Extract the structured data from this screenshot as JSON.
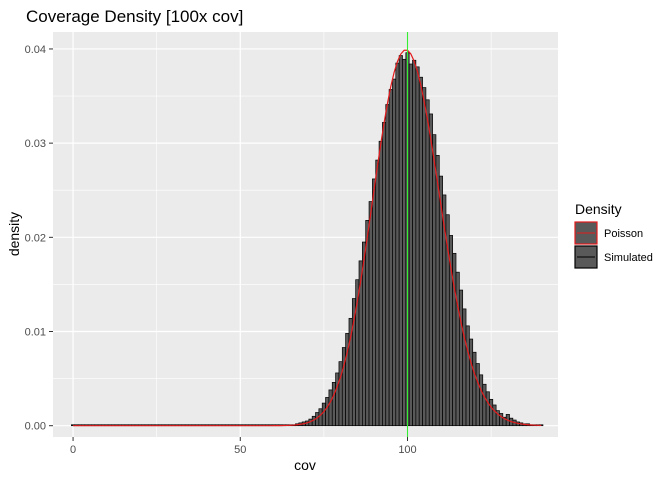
{
  "chart_data": {
    "type": "histogram",
    "title": "Coverage Density [100x cov]",
    "xlabel": "cov",
    "ylabel": "density",
    "xlim": [
      -6,
      145
    ],
    "ylim": [
      -0.0012,
      0.0418
    ],
    "x_ticks": [
      0,
      50,
      100
    ],
    "y_ticks": [
      0.0,
      0.01,
      0.02,
      0.03,
      0.04
    ],
    "x_tick_labels": [
      "0",
      "50",
      "100"
    ],
    "y_tick_labels": [
      "0.00",
      "0.01",
      "0.02",
      "0.03",
      "0.04"
    ],
    "grid": true,
    "legend": {
      "title": "Density",
      "position": "right",
      "entries": [
        {
          "label": "Poisson",
          "color": "#e41a1c"
        },
        {
          "label": "Simulated",
          "color": "#000000"
        }
      ]
    },
    "vline": {
      "x": 100,
      "color": "#33ee33"
    },
    "bar_width": 1,
    "bar_fill": "#595959",
    "bar_stroke": "#000000",
    "poisson_curve": {
      "lambda": 100,
      "color": "#e41a1c"
    },
    "bins": [
      {
        "x": 0,
        "y": 0.0001
      },
      {
        "x": 1,
        "y": 0.0001
      },
      {
        "x": 2,
        "y": 0.0001
      },
      {
        "x": 3,
        "y": 0.0001
      },
      {
        "x": 4,
        "y": 0.0001
      },
      {
        "x": 5,
        "y": 0.0001
      },
      {
        "x": 6,
        "y": 0.0001
      },
      {
        "x": 7,
        "y": 0.0001
      },
      {
        "x": 8,
        "y": 0.0001
      },
      {
        "x": 9,
        "y": 0.0001
      },
      {
        "x": 10,
        "y": 0.0001
      },
      {
        "x": 11,
        "y": 0.0001
      },
      {
        "x": 12,
        "y": 0.0001
      },
      {
        "x": 13,
        "y": 0.0001
      },
      {
        "x": 14,
        "y": 0.0001
      },
      {
        "x": 15,
        "y": 0.0001
      },
      {
        "x": 16,
        "y": 0.0001
      },
      {
        "x": 17,
        "y": 0.0001
      },
      {
        "x": 18,
        "y": 0.0001
      },
      {
        "x": 19,
        "y": 0.0001
      },
      {
        "x": 20,
        "y": 0.0001
      },
      {
        "x": 21,
        "y": 0.0001
      },
      {
        "x": 22,
        "y": 0.0001
      },
      {
        "x": 23,
        "y": 0.0001
      },
      {
        "x": 24,
        "y": 0.0001
      },
      {
        "x": 25,
        "y": 0.0001
      },
      {
        "x": 26,
        "y": 0.0001
      },
      {
        "x": 27,
        "y": 0.0001
      },
      {
        "x": 28,
        "y": 0.0001
      },
      {
        "x": 29,
        "y": 0.0001
      },
      {
        "x": 30,
        "y": 0.0001
      },
      {
        "x": 31,
        "y": 0.0001
      },
      {
        "x": 32,
        "y": 0.0001
      },
      {
        "x": 33,
        "y": 0.0001
      },
      {
        "x": 34,
        "y": 0.0001
      },
      {
        "x": 35,
        "y": 0.0001
      },
      {
        "x": 36,
        "y": 0.0001
      },
      {
        "x": 37,
        "y": 0.0001
      },
      {
        "x": 38,
        "y": 0.0001
      },
      {
        "x": 39,
        "y": 0.0001
      },
      {
        "x": 40,
        "y": 0.0001
      },
      {
        "x": 41,
        "y": 0.0001
      },
      {
        "x": 42,
        "y": 0.0001
      },
      {
        "x": 43,
        "y": 0.0001
      },
      {
        "x": 44,
        "y": 0.0001
      },
      {
        "x": 45,
        "y": 0.0001
      },
      {
        "x": 46,
        "y": 0.0001
      },
      {
        "x": 47,
        "y": 0.0001
      },
      {
        "x": 48,
        "y": 0.0001
      },
      {
        "x": 49,
        "y": 0.0001
      },
      {
        "x": 50,
        "y": 0.0001
      },
      {
        "x": 51,
        "y": 0.0001
      },
      {
        "x": 52,
        "y": 0.0001
      },
      {
        "x": 53,
        "y": 0.0001
      },
      {
        "x": 54,
        "y": 0.0001
      },
      {
        "x": 55,
        "y": 0.0001
      },
      {
        "x": 56,
        "y": 0.0001
      },
      {
        "x": 57,
        "y": 0.0001
      },
      {
        "x": 58,
        "y": 0.0001
      },
      {
        "x": 59,
        "y": 0.0001
      },
      {
        "x": 60,
        "y": 0.0001
      },
      {
        "x": 61,
        "y": 0.0001
      },
      {
        "x": 62,
        "y": 0.0001
      },
      {
        "x": 63,
        "y": 0.0001
      },
      {
        "x": 64,
        "y": 0.0001
      },
      {
        "x": 65,
        "y": 0.0001
      },
      {
        "x": 66,
        "y": 0.0001
      },
      {
        "x": 67,
        "y": 0.0002
      },
      {
        "x": 68,
        "y": 0.0003
      },
      {
        "x": 69,
        "y": 0.0004
      },
      {
        "x": 70,
        "y": 0.0005
      },
      {
        "x": 71,
        "y": 0.0007
      },
      {
        "x": 72,
        "y": 0.001
      },
      {
        "x": 73,
        "y": 0.0014
      },
      {
        "x": 74,
        "y": 0.0018
      },
      {
        "x": 75,
        "y": 0.0024
      },
      {
        "x": 76,
        "y": 0.003
      },
      {
        "x": 77,
        "y": 0.0038
      },
      {
        "x": 78,
        "y": 0.0046
      },
      {
        "x": 79,
        "y": 0.0056
      },
      {
        "x": 80,
        "y": 0.0068
      },
      {
        "x": 81,
        "y": 0.0083
      },
      {
        "x": 82,
        "y": 0.0098
      },
      {
        "x": 83,
        "y": 0.0114
      },
      {
        "x": 84,
        "y": 0.0135
      },
      {
        "x": 85,
        "y": 0.0155
      },
      {
        "x": 86,
        "y": 0.0175
      },
      {
        "x": 87,
        "y": 0.0195
      },
      {
        "x": 88,
        "y": 0.0218
      },
      {
        "x": 89,
        "y": 0.0238
      },
      {
        "x": 90,
        "y": 0.0262
      },
      {
        "x": 91,
        "y": 0.0282
      },
      {
        "x": 92,
        "y": 0.0302
      },
      {
        "x": 93,
        "y": 0.0322
      },
      {
        "x": 94,
        "y": 0.0341
      },
      {
        "x": 95,
        "y": 0.0357
      },
      {
        "x": 96,
        "y": 0.0368
      },
      {
        "x": 97,
        "y": 0.0385
      },
      {
        "x": 98,
        "y": 0.0393
      },
      {
        "x": 99,
        "y": 0.0389
      },
      {
        "x": 100,
        "y": 0.0396
      },
      {
        "x": 101,
        "y": 0.0384
      },
      {
        "x": 102,
        "y": 0.0388
      },
      {
        "x": 103,
        "y": 0.0381
      },
      {
        "x": 104,
        "y": 0.037
      },
      {
        "x": 105,
        "y": 0.0359
      },
      {
        "x": 106,
        "y": 0.0346
      },
      {
        "x": 107,
        "y": 0.0331
      },
      {
        "x": 108,
        "y": 0.0309
      },
      {
        "x": 109,
        "y": 0.0287
      },
      {
        "x": 110,
        "y": 0.0265
      },
      {
        "x": 111,
        "y": 0.0245
      },
      {
        "x": 112,
        "y": 0.0224
      },
      {
        "x": 113,
        "y": 0.0202
      },
      {
        "x": 114,
        "y": 0.0183
      },
      {
        "x": 115,
        "y": 0.0163
      },
      {
        "x": 116,
        "y": 0.0144
      },
      {
        "x": 117,
        "y": 0.0124
      },
      {
        "x": 118,
        "y": 0.0106
      },
      {
        "x": 119,
        "y": 0.0092
      },
      {
        "x": 120,
        "y": 0.0078
      },
      {
        "x": 121,
        "y": 0.0066
      },
      {
        "x": 122,
        "y": 0.0054
      },
      {
        "x": 123,
        "y": 0.0044
      },
      {
        "x": 124,
        "y": 0.0036
      },
      {
        "x": 125,
        "y": 0.0028
      },
      {
        "x": 126,
        "y": 0.0022
      },
      {
        "x": 127,
        "y": 0.0016
      },
      {
        "x": 128,
        "y": 0.0013
      },
      {
        "x": 129,
        "y": 0.0009
      },
      {
        "x": 130,
        "y": 0.0012
      },
      {
        "x": 131,
        "y": 0.0008
      },
      {
        "x": 132,
        "y": 0.0006
      },
      {
        "x": 133,
        "y": 0.0004
      },
      {
        "x": 134,
        "y": 0.0003
      },
      {
        "x": 135,
        "y": 0.0002
      },
      {
        "x": 136,
        "y": 0.0002
      },
      {
        "x": 137,
        "y": 0.0001
      },
      {
        "x": 138,
        "y": 0.0001
      },
      {
        "x": 139,
        "y": 0.0001
      },
      {
        "x": 140,
        "y": 0.0001
      }
    ]
  }
}
